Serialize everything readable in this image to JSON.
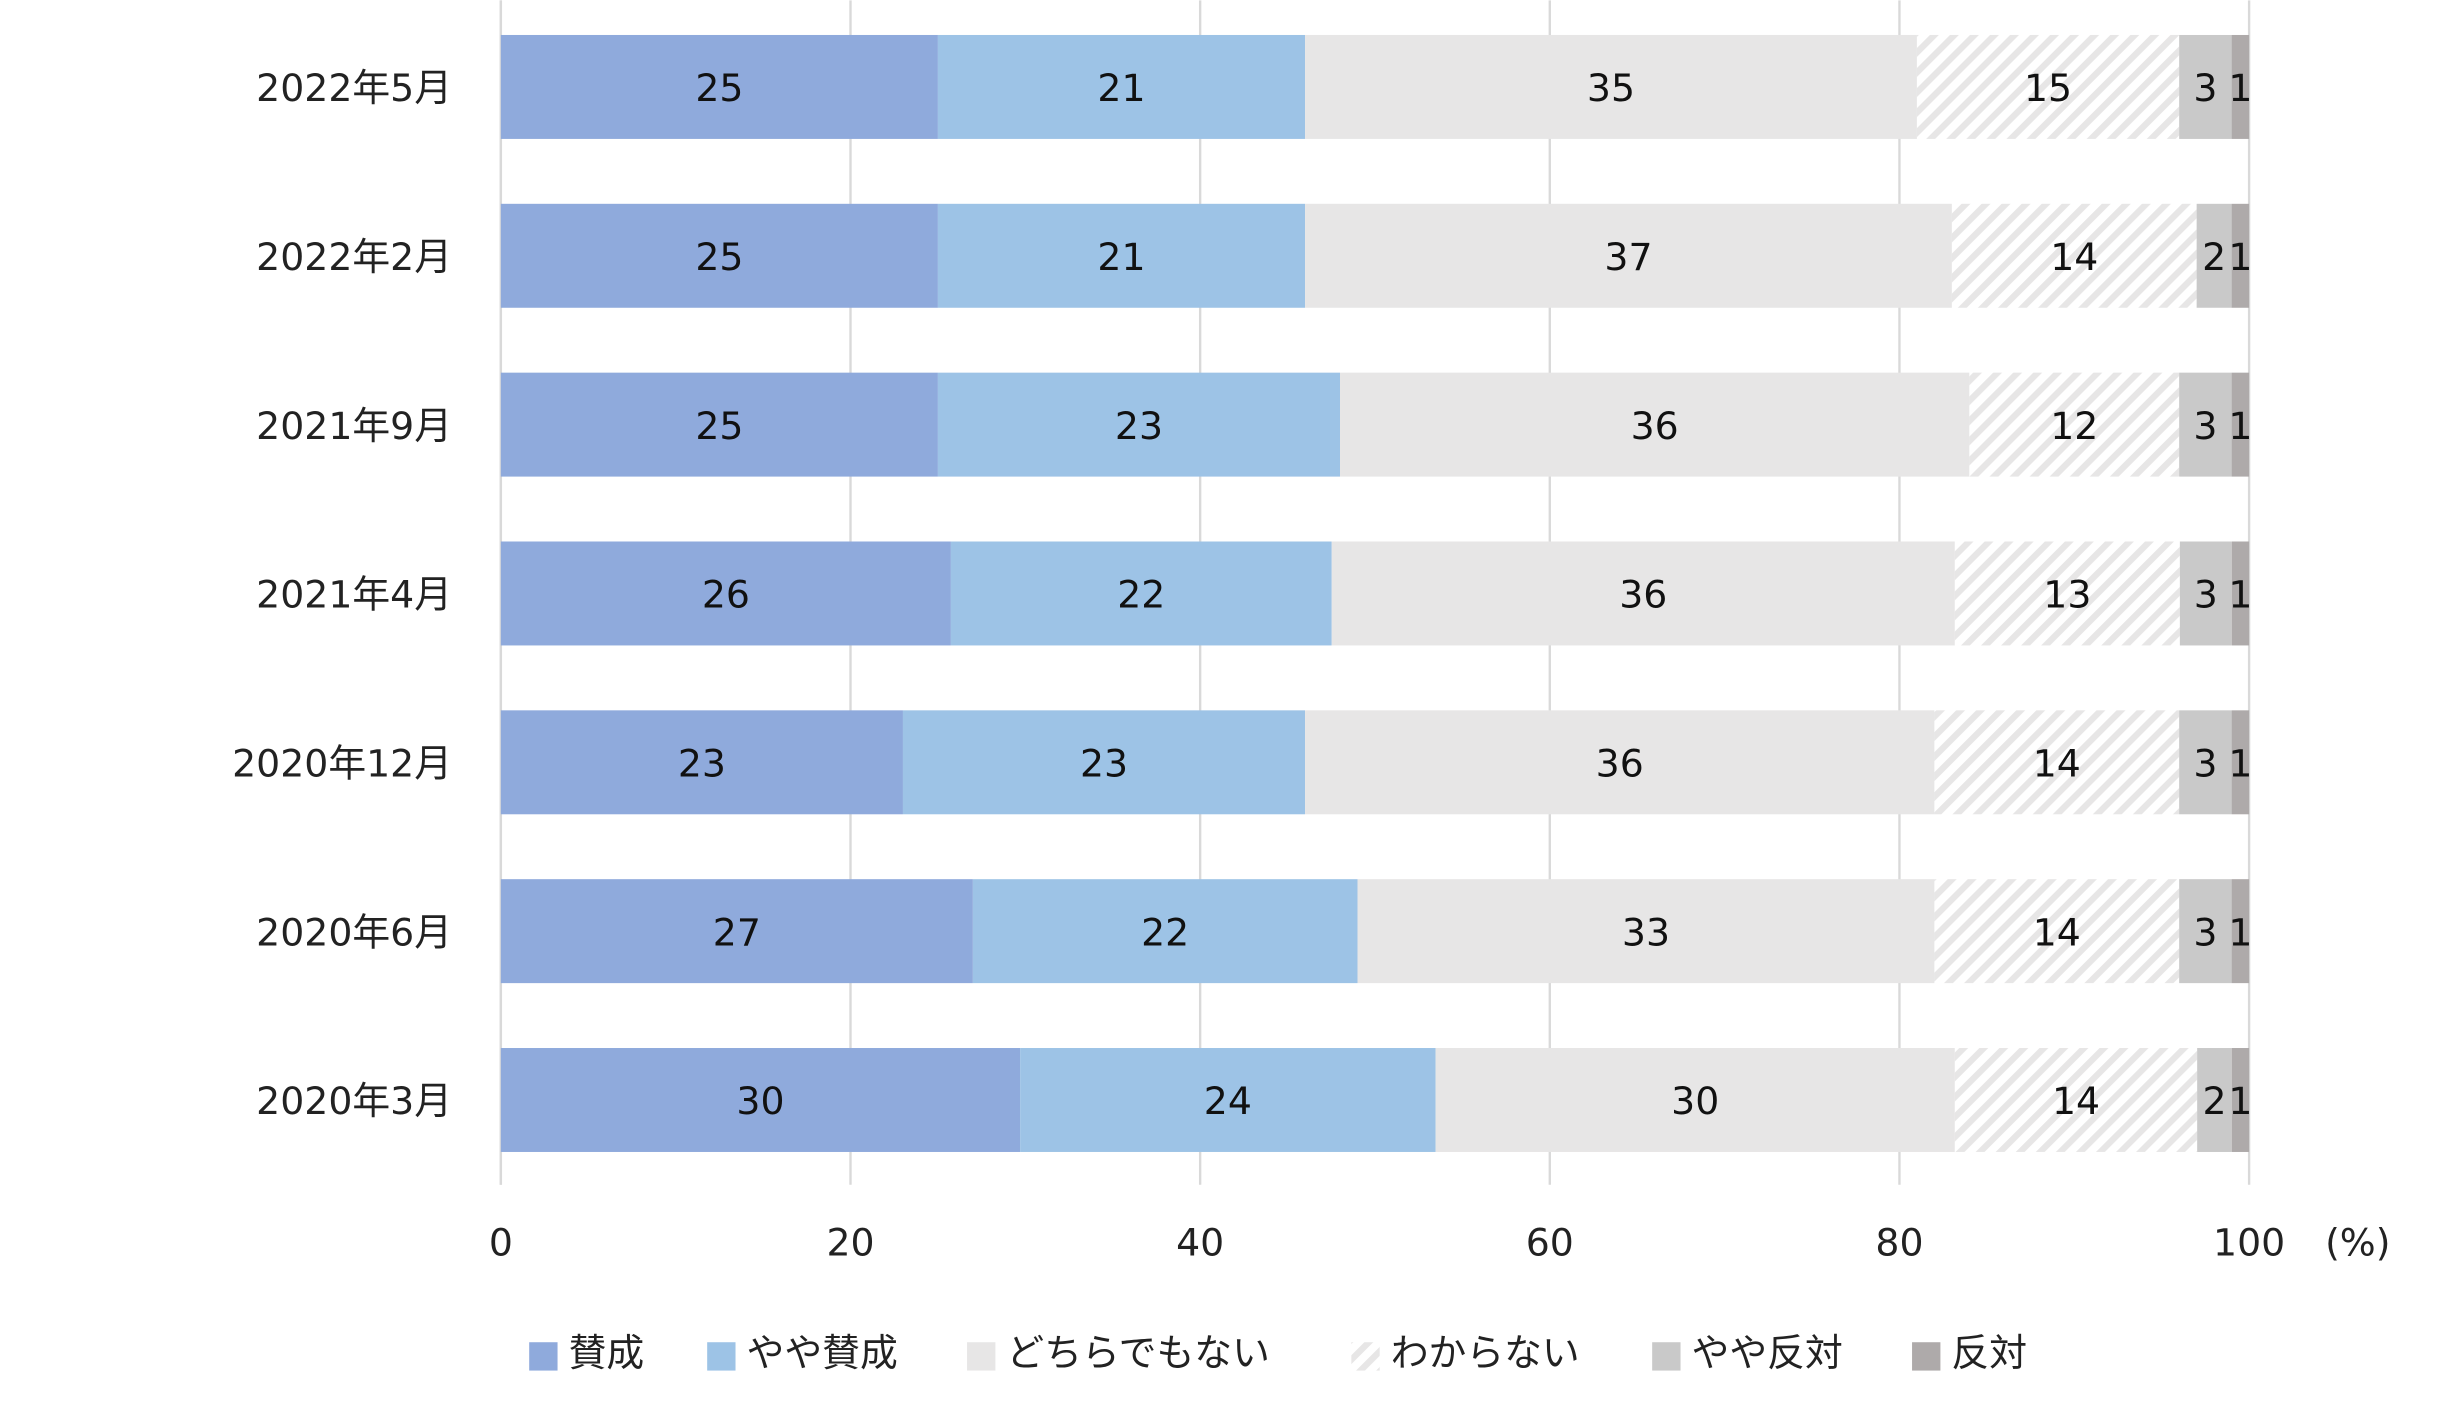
{
  "chart_data": {
    "type": "bar",
    "orientation": "horizontal",
    "stacked": true,
    "unit_label": "(%)",
    "xlim": [
      0,
      100
    ],
    "xticks": [
      "0",
      "20",
      "40",
      "60",
      "80",
      "100"
    ],
    "grid": true,
    "legend_position": "bottom",
    "categories": [
      "2022年5月",
      "2022年2月",
      "2021年9月",
      "2021年4月",
      "2020年12月",
      "2020年6月",
      "2020年3月"
    ],
    "series": [
      {
        "name": "賛成",
        "color": "#8FAADC",
        "values": [
          25,
          25,
          25,
          26,
          23,
          27,
          30
        ]
      },
      {
        "name": "やや賛成",
        "color": "#9DC3E6",
        "values": [
          21,
          21,
          23,
          22,
          23,
          22,
          24
        ]
      },
      {
        "name": "どちらでもない",
        "color": "#E7E6E6",
        "values": [
          35,
          37,
          36,
          36,
          36,
          33,
          30
        ]
      },
      {
        "name": "わからない",
        "color": "#E7E6E6",
        "pattern": "diagonal-hatch",
        "values": [
          15,
          14,
          12,
          13,
          14,
          14,
          14
        ]
      },
      {
        "name": "やや反対",
        "color": "#C9C9C9",
        "values": [
          3,
          2,
          3,
          3,
          3,
          3,
          2
        ]
      },
      {
        "name": "反対",
        "color": "#AEAAAA",
        "values": [
          1,
          1,
          1,
          1,
          1,
          1,
          1
        ]
      }
    ]
  }
}
